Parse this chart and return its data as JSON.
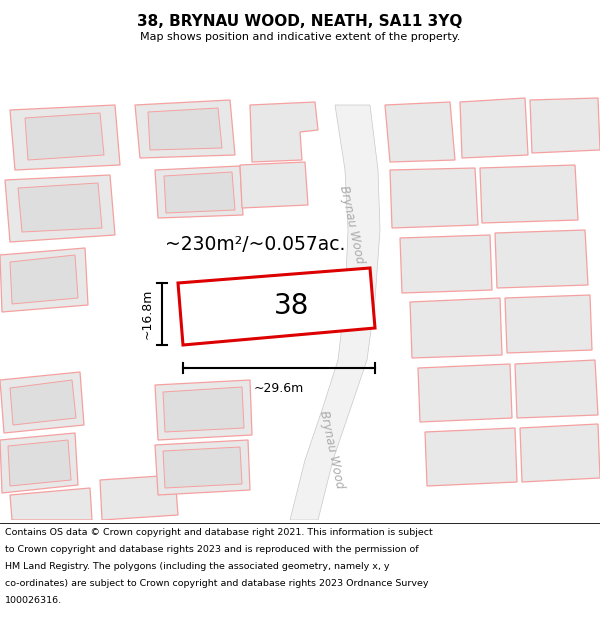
{
  "title_line1": "38, BRYNAU WOOD, NEATH, SA11 3YQ",
  "title_line2": "Map shows position and indicative extent of the property.",
  "footer_lines": [
    "Contains OS data © Crown copyright and database right 2021. This information is subject",
    "to Crown copyright and database rights 2023 and is reproduced with the permission of",
    "HM Land Registry. The polygons (including the associated geometry, namely x, y",
    "co-ordinates) are subject to Crown copyright and database rights 2023 Ordnance Survey",
    "100026316."
  ],
  "area_label": "~230m²/~0.057ac.",
  "property_number": "38",
  "dim_height": "~16.8m",
  "dim_width": "~29.6m",
  "street_label": "Brynau Wood",
  "property_color": "#dd0000",
  "neighbor_fill": "#e8e8e8",
  "neighbor_edge": "#f08080",
  "road_fill": "#f0f0f0",
  "road_edge": "#cccccc"
}
